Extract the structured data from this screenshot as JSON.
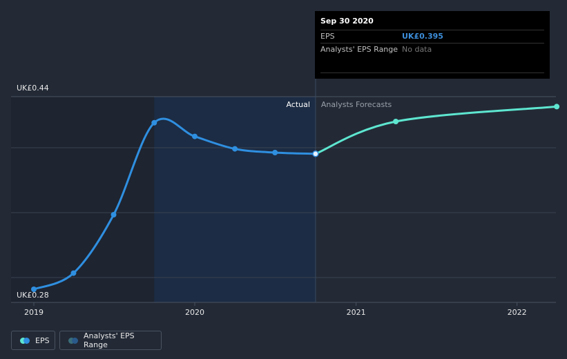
{
  "chart_data": {
    "type": "line",
    "y_axis_labels": {
      "top": "UK£0.44",
      "bottom": "UK£0.28"
    },
    "ylim": [
      0.28,
      0.44
    ],
    "x_ticks": [
      "2019",
      "2020",
      "2021",
      "2022"
    ],
    "regions": {
      "actual_label": "Actual",
      "forecast_label": "Analysts Forecasts"
    },
    "series": [
      {
        "name": "EPS",
        "kind": "actual",
        "color": "#2f8fe0",
        "points": [
          {
            "x": "2019-01-01",
            "y": 0.285
          },
          {
            "x": "2019-04-01",
            "y": 0.298
          },
          {
            "x": "2019-07-01",
            "y": 0.345
          },
          {
            "x": "2019-10-01",
            "y": 0.419
          },
          {
            "x": "2020-01-01",
            "y": 0.408
          },
          {
            "x": "2020-04-01",
            "y": 0.398
          },
          {
            "x": "2020-07-01",
            "y": 0.395
          },
          {
            "x": "2020-10-01",
            "y": 0.394
          }
        ]
      },
      {
        "name": "EPS",
        "kind": "forecast",
        "color": "#5ee6d0",
        "points": [
          {
            "x": "2020-10-01",
            "y": 0.394
          },
          {
            "x": "2021-04-01",
            "y": 0.42
          },
          {
            "x": "2022-04-01",
            "y": 0.432
          }
        ]
      }
    ]
  },
  "tooltip": {
    "date": "Sep 30 2020",
    "rows": [
      {
        "label": "EPS",
        "value": "UK£0.395"
      },
      {
        "label": "Analysts' EPS Range",
        "value": "No data"
      }
    ]
  },
  "legend": {
    "items": [
      {
        "label": "EPS",
        "colors": [
          "#5ee6d0",
          "#2f8fe0"
        ]
      },
      {
        "label": "Analysts' EPS Range",
        "colors": [
          "#3a6e7a",
          "#2a5a8a"
        ]
      }
    ]
  }
}
